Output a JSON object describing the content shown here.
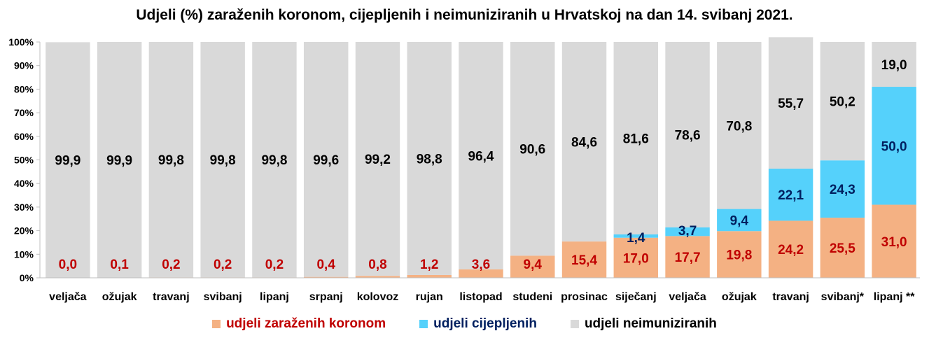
{
  "chart_data": {
    "type": "bar",
    "stacked": true,
    "title": "Udjeli (%) zaraženih koronom, cijepljenih i neimuniziranih u Hrvatskoj na dan 14. svibanj 2021.",
    "categories": [
      "veljača",
      "ožujak",
      "travanj",
      "svibanj",
      "lipanj",
      "srpanj",
      "kolovoz",
      "rujan",
      "listopad",
      "studeni",
      "prosinac",
      "siječanj",
      "veljača",
      "ožujak",
      "travanj",
      "svibanj*",
      "lipanj **"
    ],
    "ylim": [
      0,
      100
    ],
    "yticks": [
      "0%",
      "10%",
      "20%",
      "30%",
      "40%",
      "50%",
      "60%",
      "70%",
      "80%",
      "90%",
      "100%"
    ],
    "series": [
      {
        "name": "udjeli zaraženih koronom",
        "color": "#f4b183",
        "label_color": "#c00000",
        "values": [
          0.0,
          0.1,
          0.2,
          0.2,
          0.2,
          0.4,
          0.8,
          1.2,
          3.6,
          9.4,
          15.4,
          17.0,
          17.7,
          19.8,
          24.2,
          25.5,
          31.0
        ],
        "labels": [
          "0,0",
          "0,1",
          "0,2",
          "0,2",
          "0,2",
          "0,4",
          "0,8",
          "1,2",
          "3,6",
          "9,4",
          "15,4",
          "17,0",
          "17,7",
          "19,8",
          "24,2",
          "25,5",
          "31,0"
        ]
      },
      {
        "name": "udjeli cijepljenih",
        "color": "#55d1fb",
        "label_color": "#002060",
        "values": [
          0,
          0,
          0,
          0,
          0,
          0,
          0,
          0,
          0,
          0,
          0,
          1.4,
          3.7,
          9.4,
          22.1,
          24.3,
          50.0
        ],
        "labels": [
          "",
          "",
          "",
          "",
          "",
          "",
          "",
          "",
          "",
          "",
          "",
          "1,4",
          "3,7",
          "9,4",
          "22,1",
          "24,3",
          "50,0"
        ]
      },
      {
        "name": "udjeli neimuniziranih",
        "color": "#d9d9d9",
        "label_color": "#000000",
        "values": [
          99.9,
          99.9,
          99.8,
          99.8,
          99.8,
          99.6,
          99.2,
          98.8,
          96.4,
          90.6,
          84.6,
          81.6,
          78.6,
          70.8,
          55.7,
          50.2,
          19.0
        ],
        "labels": [
          "99,9",
          "99,9",
          "99,8",
          "99,8",
          "99,8",
          "99,6",
          "99,2",
          "98,8",
          "96,4",
          "90,6",
          "84,6",
          "81,6",
          "78,6",
          "70,8",
          "55,7",
          "50,2",
          "19,0"
        ]
      }
    ],
    "legend_position": "bottom",
    "grid": false
  }
}
